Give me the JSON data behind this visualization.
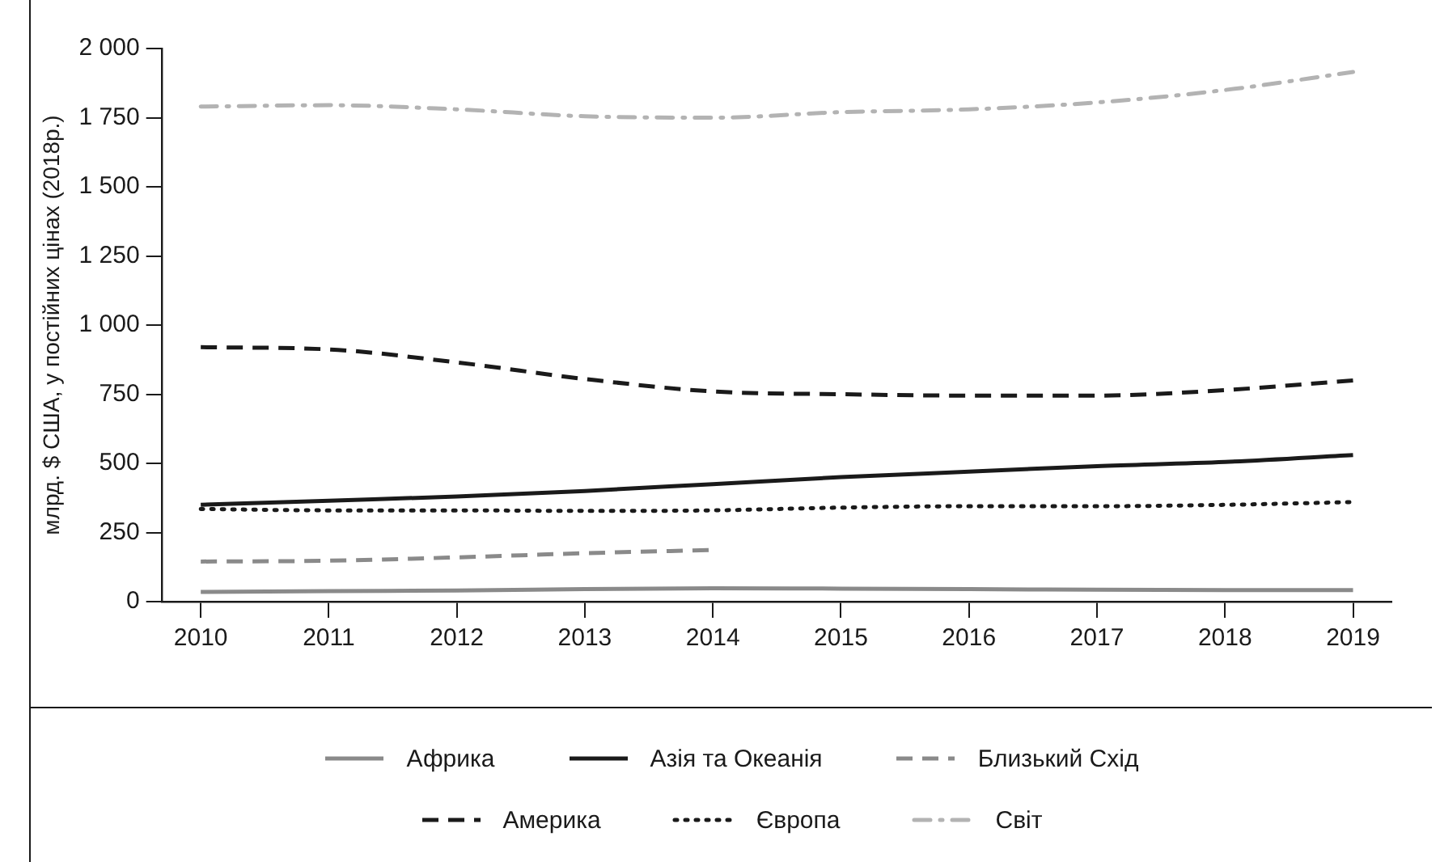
{
  "chart_data": {
    "type": "line",
    "ylabel": "млрд. $ США, у постійних цінах (2018р.)",
    "x": [
      2010,
      2011,
      2012,
      2013,
      2014,
      2015,
      2016,
      2017,
      2018,
      2019
    ],
    "xlim": [
      2009.7,
      2019.3
    ],
    "xticks": [
      2010,
      2011,
      2012,
      2013,
      2014,
      2015,
      2016,
      2017,
      2018,
      2019
    ],
    "ylim": [
      0,
      2000
    ],
    "yticks": [
      0,
      250,
      500,
      750,
      {
        "value": 1000,
        "label": "1 000"
      },
      {
        "value": 1250,
        "label": "1 250"
      },
      {
        "value": 1500,
        "label": "1 500"
      },
      {
        "value": 1750,
        "label": "1 750"
      },
      {
        "value": 2000,
        "label": "2 000"
      }
    ],
    "grid": false,
    "legend": "bottom",
    "marker": "none",
    "series": [
      {
        "name": "Африка",
        "color": "#8a8a8a",
        "line_style": "solid",
        "values": [
          35,
          38,
          40,
          45,
          48,
          47,
          45,
          43,
          42,
          42
        ]
      },
      {
        "name": "Азія та Океанія",
        "color": "#1a1a1a",
        "line_style": "solid",
        "values": [
          350,
          365,
          380,
          400,
          425,
          450,
          470,
          490,
          505,
          530
        ]
      },
      {
        "name": "Близький Схід",
        "color": "#8a8a8a",
        "line_style": "dashed",
        "values": [
          145,
          148,
          160,
          175,
          187,
          null,
          null,
          null,
          null,
          null
        ]
      },
      {
        "name": "Америка",
        "color": "#1a1a1a",
        "line_style": "dashed",
        "values": [
          920,
          912,
          865,
          805,
          760,
          750,
          745,
          745,
          765,
          800
        ]
      },
      {
        "name": "Європа",
        "color": "#1a1a1a",
        "line_style": "dotted",
        "values": [
          335,
          330,
          330,
          328,
          330,
          340,
          345,
          345,
          350,
          360
        ]
      },
      {
        "name": "Світ",
        "color": "#b3b3b3",
        "line_style": "dashdot",
        "values": [
          1790,
          1795,
          1780,
          1755,
          1750,
          1770,
          1780,
          1805,
          1850,
          1915
        ]
      }
    ]
  }
}
